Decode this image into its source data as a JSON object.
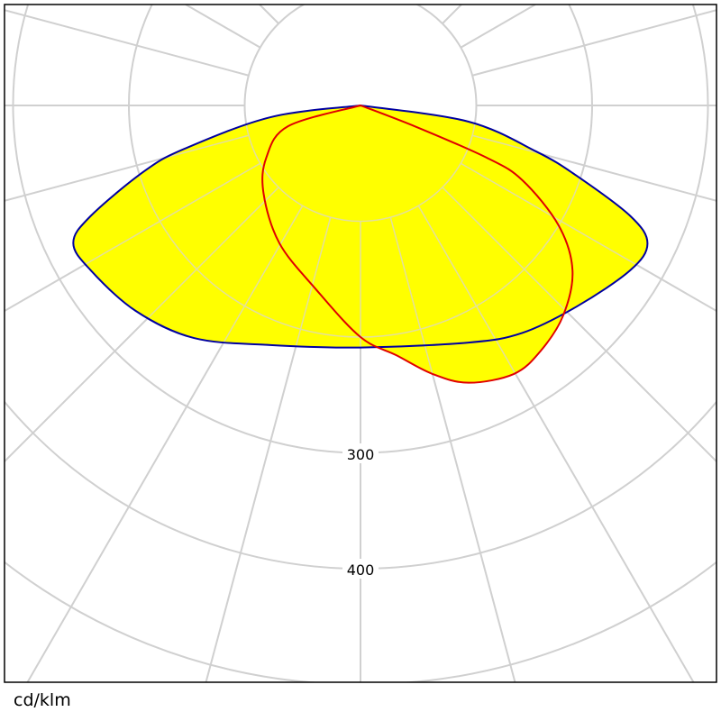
{
  "chart_data": {
    "type": "polar",
    "unit_label": "cd/klm",
    "radial_ticks": [
      100,
      200,
      300,
      400,
      500
    ],
    "radial_tick_labels": [
      "300",
      "400"
    ],
    "angle_step_deg": 15,
    "grid": true,
    "fill_color": "#ffff00",
    "series": [
      {
        "color": "#0000a0",
        "points": [
          [
            -90,
            0
          ],
          [
            -82.6,
            78
          ],
          [
            -76.2,
            156
          ],
          [
            -73.1,
            195
          ],
          [
            -67.7,
            252
          ],
          [
            -64.4,
            275
          ],
          [
            -58.6,
            273
          ],
          [
            -47.6,
            263
          ],
          [
            -35.6,
            247
          ],
          [
            -20.6,
            221
          ],
          [
            0,
            209
          ],
          [
            24.5,
            225
          ],
          [
            35.4,
            241
          ],
          [
            47.1,
            255
          ],
          [
            58.6,
            273
          ],
          [
            64.3,
            275
          ],
          [
            67.7,
            252
          ],
          [
            72,
            196
          ],
          [
            75.3,
            157
          ],
          [
            81.5,
            94
          ],
          [
            90,
            0
          ]
        ]
      },
      {
        "color": "#e00000",
        "points": [
          [
            -90,
            0
          ],
          [
            -74,
            65
          ],
          [
            -61,
            93
          ],
          [
            -47.8,
            113
          ],
          [
            -30.5,
            138
          ],
          [
            -13.8,
            163
          ],
          [
            0,
            200
          ],
          [
            8.2,
            218
          ],
          [
            15,
            240
          ],
          [
            21.3,
            257
          ],
          [
            29.7,
            267
          ],
          [
            36.2,
            263
          ],
          [
            44,
            252
          ],
          [
            52.1,
            232
          ],
          [
            58.8,
            200
          ],
          [
            65.2,
            154
          ],
          [
            67.5,
            118
          ],
          [
            69,
            50
          ],
          [
            90,
            0
          ]
        ]
      }
    ]
  }
}
